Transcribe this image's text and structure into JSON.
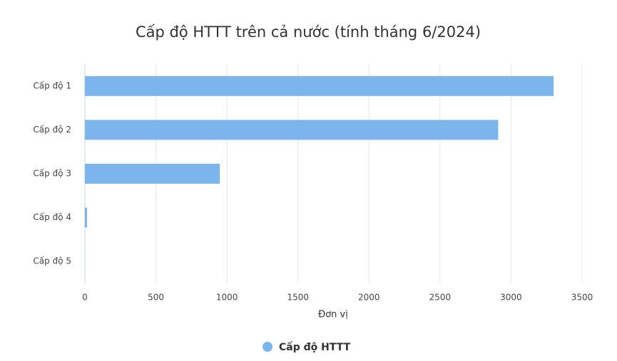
{
  "chart_data": {
    "type": "bar",
    "orientation": "horizontal",
    "title": "Cấp độ HTTT trên cả nước (tính tháng 6/2024)",
    "x_label": "Đơn vị",
    "categories": [
      "Cấp độ 1",
      "Cấp độ 2",
      "Cấp độ 3",
      "Cấp độ 4",
      "Cấp độ 5"
    ],
    "series": [
      {
        "name": "Cấp độ HTTT",
        "color": "#7cb5ec",
        "values": [
          3300,
          2910,
          950,
          15,
          0
        ]
      }
    ],
    "xlim": [
      0,
      3500
    ],
    "xticks": [
      0,
      500,
      1000,
      1500,
      2000,
      2500,
      3000,
      3500
    ],
    "grid": true,
    "legend": "bottom"
  }
}
